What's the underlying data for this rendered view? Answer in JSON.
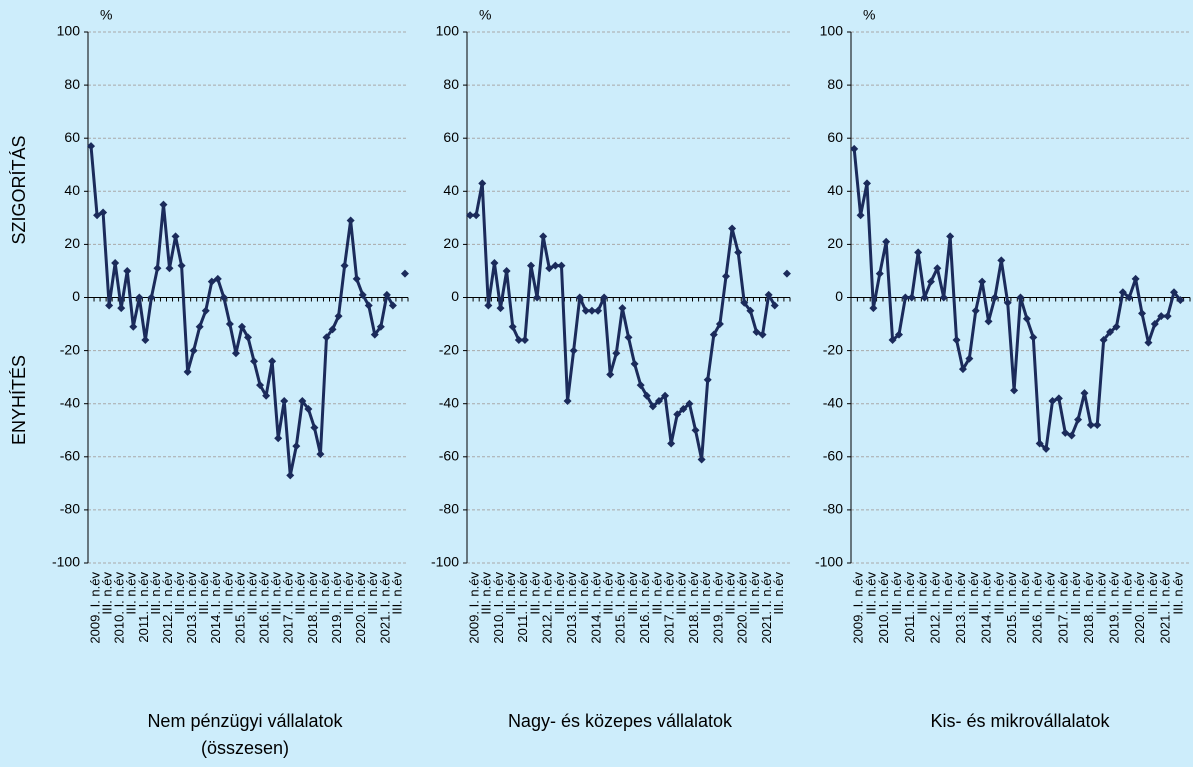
{
  "chart_data": [
    {
      "type": "line",
      "title": [
        "Nem pénzügyi vállalatok",
        "(összesen)"
      ],
      "unit": "%",
      "ylabel_top": "SZIGORÍTÁS",
      "ylabel_bottom": "ENYHÍTÉS",
      "ylim": [
        -100,
        100
      ],
      "yticks": [
        -100,
        -80,
        -60,
        -40,
        -20,
        0,
        20,
        40,
        60,
        80,
        100
      ],
      "grid": true,
      "categories": [
        "2009. I. n.év",
        null,
        "III. n.év",
        null,
        "2010. I. n.év",
        null,
        "III. n.év",
        null,
        "2011. I. n.év",
        null,
        "III. n.év",
        null,
        "2012. I. n.év",
        null,
        "III. n.év",
        null,
        "2013. I. n.év",
        null,
        "III. n.év",
        null,
        "2014. I. n.év",
        null,
        "III. n.év",
        null,
        "2015. I. n.év",
        null,
        "III. n.év",
        null,
        "2016. I. n.év",
        null,
        "III. n.év",
        null,
        "2017. I. n.év",
        null,
        "III. n.év",
        null,
        "2018. I. n.év",
        null,
        "III. n.év",
        null,
        "2019. I. n.év",
        null,
        "III. n.év",
        null,
        "2020. I. n.év",
        null,
        "III. n.év",
        null,
        "2021. I. n.év",
        null,
        "III. n.év",
        null,
        null
      ],
      "series": [
        {
          "color": "#1b2b5b",
          "values": [
            57,
            31,
            32,
            -3,
            13,
            -4,
            10,
            -11,
            0,
            -16,
            0,
            11,
            35,
            11,
            23,
            12,
            -28,
            -20,
            -11,
            -5,
            6,
            7,
            0,
            -10,
            -21,
            -11,
            -15,
            -24,
            -33,
            -37,
            -24,
            -53,
            -39,
            -67,
            -56,
            -39,
            -42,
            -49,
            -59,
            -15,
            -12,
            -7,
            12,
            29,
            7,
            1,
            -3,
            -14,
            -11,
            1,
            -3,
            null,
            9
          ]
        }
      ]
    },
    {
      "type": "line",
      "title": [
        "Nagy- és közepes vállalatok"
      ],
      "unit": "%",
      "ylim": [
        -100,
        100
      ],
      "yticks": [
        -100,
        -80,
        -60,
        -40,
        -20,
        0,
        20,
        40,
        60,
        80,
        100
      ],
      "grid": true,
      "categories": [
        "2009. I. n.év",
        null,
        "III. n.év",
        null,
        "2010. I. n.év",
        null,
        "III. n.év",
        null,
        "2011. I. n.év",
        null,
        "III. n.év",
        null,
        "2012. I. n.év",
        null,
        "III. n.év",
        null,
        "2013. I. n.év",
        null,
        "III. n.év",
        null,
        "2014. I. n.év",
        null,
        "III. n.év",
        null,
        "2015. I. n.év",
        null,
        "III. n.év",
        null,
        "2016. I. n.év",
        null,
        "III. n.év",
        null,
        "2017. I. n.év",
        null,
        "III. n.év",
        null,
        "2018. I. n.év",
        null,
        "III. n.év",
        null,
        "2019. I. n.év",
        null,
        "III. n.év",
        null,
        "2020. I. n.év",
        null,
        "III. n.év",
        null,
        "2021. I. n.év",
        null,
        "III. n.év",
        null,
        null
      ],
      "series": [
        {
          "color": "#1b2b5b",
          "values": [
            31,
            31,
            43,
            -3,
            13,
            -4,
            10,
            -11,
            -16,
            -16,
            12,
            0,
            23,
            11,
            12,
            12,
            -39,
            -20,
            0,
            -5,
            -5,
            -5,
            0,
            -29,
            -21,
            -4,
            -15,
            -25,
            -33,
            -37,
            -41,
            -39,
            -37,
            -55,
            -44,
            -42,
            -40,
            -50,
            -61,
            -31,
            -14,
            -10,
            8,
            26,
            17,
            -2,
            -5,
            -13,
            -14,
            1,
            -3,
            null,
            9
          ]
        }
      ]
    },
    {
      "type": "line",
      "title": [
        "Kis- és mikrovállalatok"
      ],
      "unit": "%",
      "ylim": [
        -100,
        100
      ],
      "yticks": [
        -100,
        -80,
        -60,
        -40,
        -20,
        0,
        20,
        40,
        60,
        80,
        100
      ],
      "grid": true,
      "categories": [
        "2009. I. n.év",
        null,
        "III. n.év",
        null,
        "2010. I. n.év",
        null,
        "III. n.év",
        null,
        "2011. I. n.év",
        null,
        "III. n.év",
        null,
        "2012. I. n.év",
        null,
        "III. n.év",
        null,
        "2013. I. n.év",
        null,
        "III. n.év",
        null,
        "2014. I. n.év",
        null,
        "III. n.év",
        null,
        "2015. I. n.év",
        null,
        "III. n.év",
        null,
        "2016. I. n.év",
        null,
        "III. n.év",
        null,
        "2017. I. n.év",
        null,
        "III. n.év",
        null,
        "2018. I. n.év",
        null,
        "III. n.év",
        null,
        "2019. I. n.év",
        null,
        "III. n.év",
        null,
        "2020. I. n.év",
        null,
        "III. n.év",
        null,
        "2021. I. n.év",
        null,
        "III. n.év",
        null,
        null
      ],
      "series": [
        {
          "color": "#1b2b5b",
          "values": [
            56,
            31,
            43,
            -4,
            9,
            21,
            -16,
            -14,
            0,
            0,
            17,
            0,
            6,
            11,
            0,
            23,
            -16,
            -27,
            -23,
            -5,
            6,
            -9,
            0,
            14,
            -2,
            -35,
            0,
            -8,
            -15,
            -55,
            -57,
            -39,
            -38,
            -51,
            -52,
            -46,
            -36,
            -48,
            -48,
            -16,
            -13,
            -11,
            2,
            0,
            7,
            -6,
            -17,
            -10,
            -7,
            -7,
            2,
            -1,
            null
          ]
        }
      ]
    }
  ]
}
